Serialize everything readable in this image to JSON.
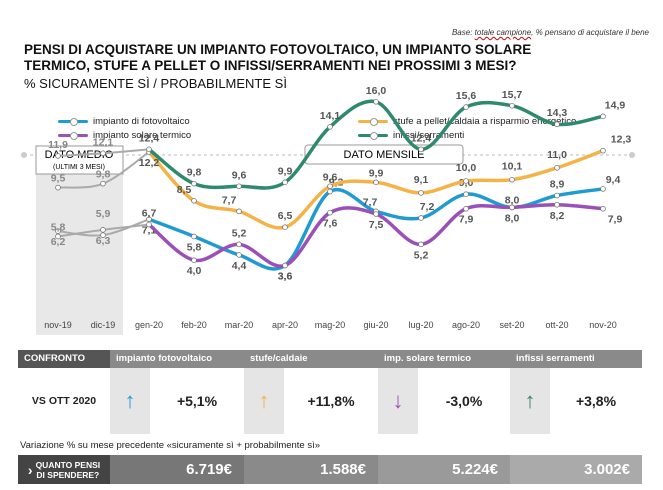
{
  "base_note_prefix": "Base: ",
  "base_note_underlined": "totale campione",
  "base_note_suffix": ", % pensano di acquistare il bene",
  "title": "PENSI DI ACQUISTARE UN IMPIANTO FOTOVOLTAICO, UN IMPIANTO SOLARE TERMICO,  STUFE A PELLET O INFISSI/SERRAMENTI NEI PROSSIMI 3 MESI?",
  "subtitle": "% SICURAMENTE SÌ / PROBABILMENTE SÌ",
  "colors": {
    "fotovoltaico": "#1f9bd1",
    "stufe": "#f5b247",
    "solare": "#9b4fb8",
    "infissi": "#2e8a6e",
    "grey_band": "#e8e8e8",
    "header_dark": "#555555",
    "header_mid": "#8a8a8a"
  },
  "chart_data": {
    "type": "line",
    "x": [
      "nov-19",
      "dic-19",
      "gen-20",
      "feb-20",
      "mar-20",
      "apr-20",
      "mag-20",
      "giu-20",
      "lug-20",
      "ago-20",
      "set-20",
      "ott-20",
      "nov-20"
    ],
    "ylim": [
      0,
      18
    ],
    "band_labels": {
      "avg": "DATO MEDIO",
      "avg_sub": "(ULTIMI 3 MESI)",
      "monthly": "DATO MENSILE"
    },
    "series": [
      {
        "name": "impianto di fotovoltaico",
        "color_key": "fotovoltaico",
        "values": [
          6.2,
          5.9,
          7.1,
          5.8,
          4.4,
          3.6,
          9.2,
          7.7,
          7.2,
          9.0,
          8.0,
          8.9,
          9.4
        ]
      },
      {
        "name": "stufe a pellet/caldaia a risparmio energetico",
        "color_key": "stufe",
        "values": [
          9.5,
          9.8,
          12.2,
          8.5,
          7.7,
          6.5,
          9.6,
          9.9,
          9.1,
          10.0,
          10.1,
          11.0,
          12.3
        ]
      },
      {
        "name": "impianto solare termico",
        "color_key": "solare",
        "values": [
          5.8,
          6.3,
          6.7,
          4.0,
          5.2,
          3.6,
          7.6,
          7.5,
          5.2,
          7.9,
          8.0,
          8.2,
          7.9
        ]
      },
      {
        "name": "infissi/serramenti",
        "color_key": "infissi",
        "values": [
          11.9,
          12.1,
          12.4,
          9.8,
          9.6,
          9.9,
          14.1,
          16.0,
          12.4,
          15.6,
          15.7,
          14.3,
          14.9
        ]
      }
    ]
  },
  "table": {
    "header": {
      "confronto": "CONFRONTO",
      "c1": "impianto fotovoltaico",
      "c2": "stufe/caldaie",
      "c3": "imp. solare termico",
      "c4": "infissi serramenti"
    },
    "row_label": "VS OTT 2020",
    "changes": [
      {
        "arrow": "↑",
        "value": "+5,1%",
        "color_key": "fotovoltaico"
      },
      {
        "arrow": "↑",
        "value": "+11,8%",
        "color_key": "stufe"
      },
      {
        "arrow": "↓",
        "value": "-3,0%",
        "color_key": "solare"
      },
      {
        "arrow": "↑",
        "value": "+3,8%",
        "color_key": "infissi"
      }
    ],
    "note": "Variazione % su mese precedente «sicuramente sì + probabilmente sì»"
  },
  "spend": {
    "question_line1": "QUANTO PENSI",
    "question_line2": "DI SPENDERE?",
    "arrow": "›",
    "values": [
      "6.719€",
      "1.588€",
      "5.224€",
      "3.002€"
    ]
  }
}
